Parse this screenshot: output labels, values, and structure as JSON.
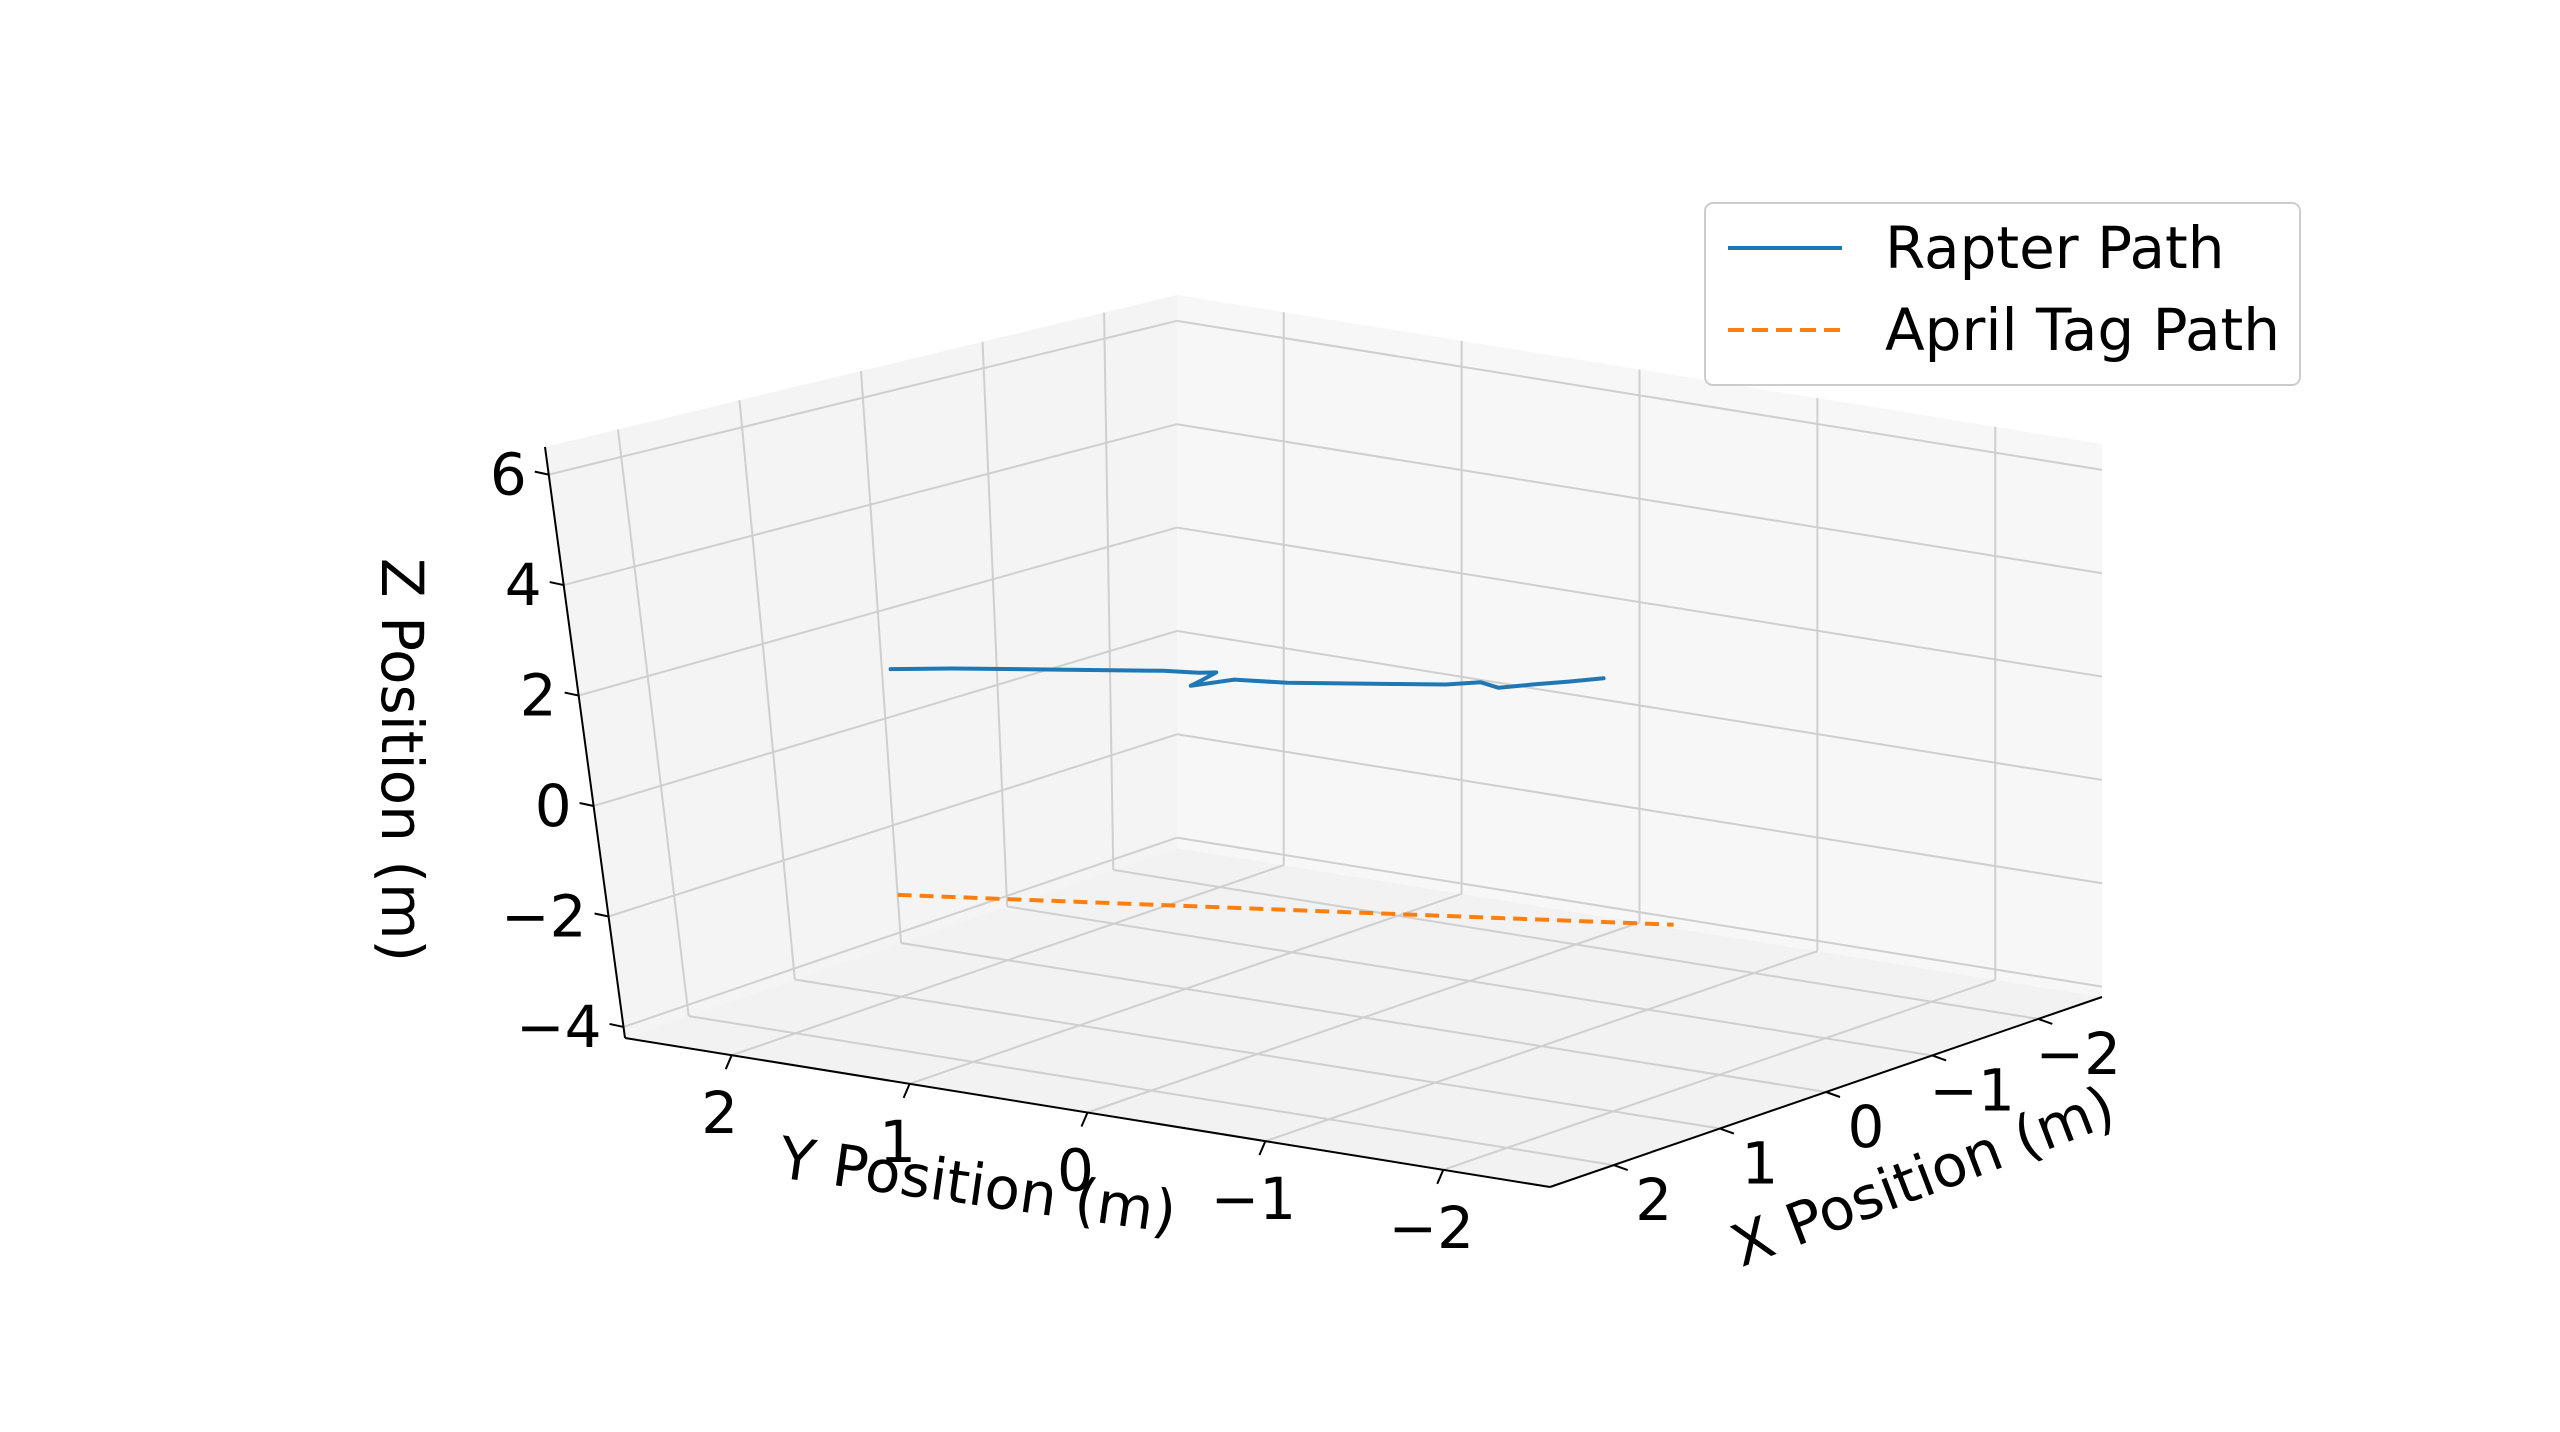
{
  "chart_data": {
    "type": "line",
    "projection": "3d",
    "xlabel": "X Position (m)",
    "ylabel": "Y Position (m)",
    "zlabel": "Z Position (m)",
    "xlim": [
      2.6,
      -2.6
    ],
    "ylim": [
      2.6,
      -2.6
    ],
    "zlim": [
      -4.2,
      6.5
    ],
    "xticks": [
      2,
      1,
      0,
      -1,
      -2
    ],
    "yticks": [
      2,
      1,
      0,
      -1,
      -2
    ],
    "zticks": [
      6,
      4,
      2,
      0,
      -2,
      -4
    ],
    "xtick_labels": [
      "2",
      "1",
      "0",
      "−1",
      "−2"
    ],
    "ytick_labels": [
      "2",
      "1",
      "0",
      "−1",
      "−2"
    ],
    "ztick_labels": [
      "6",
      "4",
      "2",
      "0",
      "−2",
      "−4"
    ],
    "grid": true,
    "legend": {
      "placement": "top-right"
    },
    "colors": {
      "pane": "#f2f2f2",
      "grid": "#cfcfcf"
    },
    "series": [
      {
        "name": "Rapter Path",
        "color": "#1f77b4",
        "linestyle": "solid",
        "points": [
          [
            0.0,
            2.55,
            0.95
          ],
          [
            0.0,
            2.2,
            1.15
          ],
          [
            0.0,
            1.9,
            1.3
          ],
          [
            0.0,
            1.6,
            1.45
          ],
          [
            0.0,
            1.3,
            1.6
          ],
          [
            0.0,
            1.0,
            1.75
          ],
          [
            0.0,
            0.8,
            1.82
          ],
          [
            0.0,
            0.7,
            1.88
          ],
          [
            0.0,
            0.78,
            1.7
          ],
          [
            0.0,
            0.85,
            1.55
          ],
          [
            0.0,
            0.6,
            1.8
          ],
          [
            0.0,
            0.3,
            1.9
          ],
          [
            0.0,
            0.0,
            2.05
          ],
          [
            0.0,
            -0.3,
            2.2
          ],
          [
            0.0,
            -0.6,
            2.35
          ],
          [
            0.0,
            -0.8,
            2.5
          ],
          [
            0.0,
            -0.9,
            2.45
          ],
          [
            0.0,
            -1.1,
            2.62
          ],
          [
            0.0,
            -1.3,
            2.78
          ],
          [
            0.0,
            -1.5,
            2.95
          ]
        ]
      },
      {
        "name": "April Tag Path",
        "color": "#ff7f0e",
        "linestyle": "dashed",
        "points": [
          [
            0.0,
            2.6,
            -3.3
          ],
          [
            0.0,
            -1.8,
            -1.5
          ]
        ]
      }
    ]
  }
}
